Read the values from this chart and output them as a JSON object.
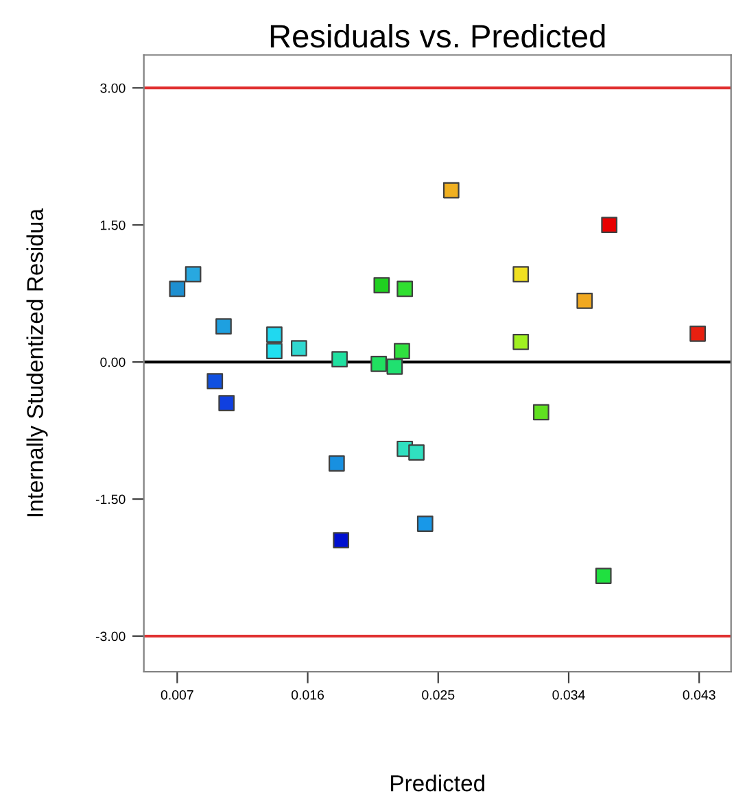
{
  "chart_data": {
    "type": "scatter",
    "title": "Residuals vs. Predicted",
    "xlabel": "Predicted",
    "ylabel": "Internally Studentized Residua",
    "marker": "square",
    "grid": false,
    "x": [
      0.007,
      0.0081,
      0.0102,
      0.0096,
      0.0104,
      0.0137,
      0.0137,
      0.0154,
      0.0182,
      0.018,
      0.0183,
      0.0211,
      0.0227,
      0.0209,
      0.022,
      0.0225,
      0.0227,
      0.0235,
      0.0241,
      0.0259,
      0.0307,
      0.0307,
      0.0321,
      0.0351,
      0.0368,
      0.0364,
      0.0429
    ],
    "values": [
      0.8,
      0.96,
      0.39,
      -0.21,
      -0.45,
      0.3,
      0.12,
      0.15,
      0.03,
      -1.11,
      -1.95,
      0.84,
      0.8,
      -0.02,
      -0.05,
      0.12,
      -0.95,
      -0.99,
      -1.77,
      1.88,
      0.96,
      0.22,
      -0.55,
      0.67,
      1.5,
      -2.34,
      0.31
    ],
    "colors": [
      "#1e8fd0",
      "#28a8e0",
      "#1ea0e0",
      "#1050e0",
      "#1040e0",
      "#20d8f0",
      "#20e0f0",
      "#30d8d0",
      "#20e0a0",
      "#1890e0",
      "#0010d0",
      "#20d020",
      "#30e030",
      "#20e060",
      "#20e070",
      "#30e040",
      "#30e0c0",
      "#30e0c0",
      "#1898e8",
      "#f0b020",
      "#f0e020",
      "#a0f020",
      "#60e020",
      "#f0a820",
      "#e80000",
      "#20e040",
      "#e82010"
    ],
    "xlim": [
      0.0047,
      0.0452
    ],
    "ylim": [
      -3.39,
      3.36
    ],
    "xticks": [
      {
        "value": 0.007,
        "label": "0.007"
      },
      {
        "value": 0.016,
        "label": "0.016"
      },
      {
        "value": 0.025,
        "label": "0.025"
      },
      {
        "value": 0.034,
        "label": "0.034"
      },
      {
        "value": 0.043,
        "label": "0.043"
      }
    ],
    "yticks": [
      {
        "value": -3,
        "label": "-3.00"
      },
      {
        "value": -1.5,
        "label": "-1.50"
      },
      {
        "value": 0,
        "label": "0.00"
      },
      {
        "value": 1.5,
        "label": "1.50"
      },
      {
        "value": 3,
        "label": "3.00"
      }
    ],
    "ref_lines": [
      {
        "axis": "y",
        "value": 3,
        "color": "#e03030"
      },
      {
        "axis": "y",
        "value": 0,
        "color": "#000000"
      },
      {
        "axis": "y",
        "value": -3,
        "color": "#e03030"
      }
    ]
  }
}
